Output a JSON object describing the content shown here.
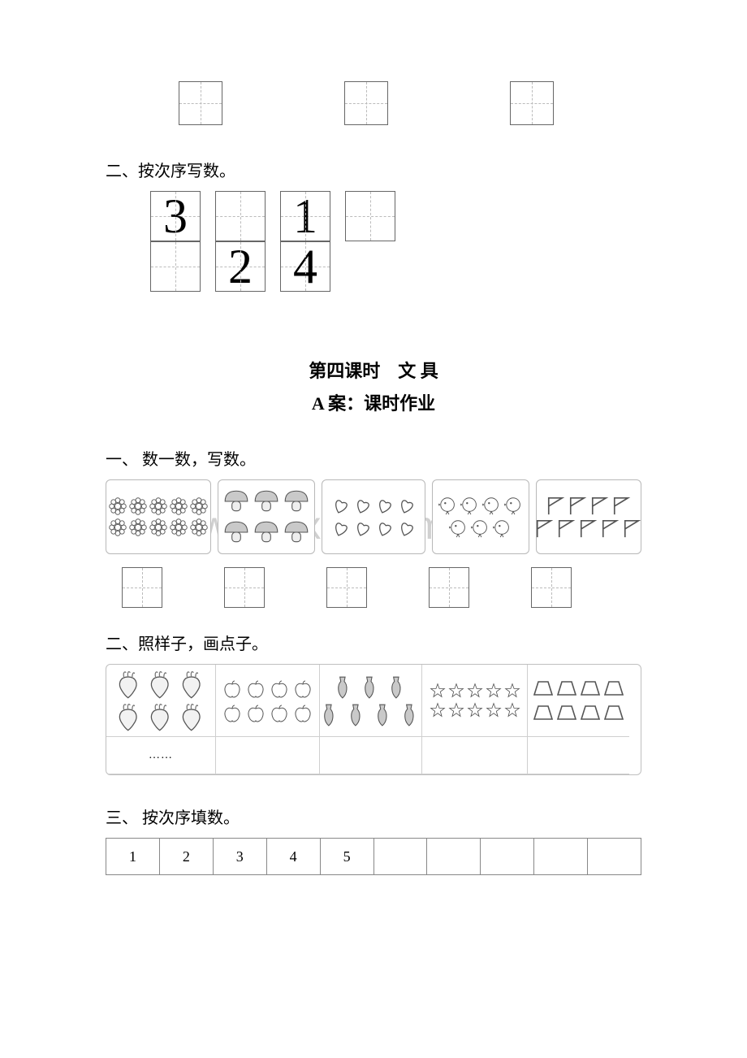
{
  "watermark": "www.zixin.com.cn",
  "section_top": {
    "heading": "二、按次序写数。",
    "grid": {
      "values": [
        [
          "3",
          "",
          "1",
          ""
        ],
        [
          "",
          "2",
          "4"
        ]
      ]
    }
  },
  "lesson": {
    "title": "第四课时　文 具",
    "subtitle": "A 案：课时作业"
  },
  "q1": {
    "heading": "一、 数一数，写数。",
    "cards": [
      {
        "type": "flower",
        "rows": [
          5,
          5
        ],
        "width": 130
      },
      {
        "type": "mushroom",
        "rows": [
          3,
          3
        ],
        "width": 120
      },
      {
        "type": "heart",
        "rows": [
          4,
          4
        ],
        "width": 128
      },
      {
        "type": "chick",
        "rows": [
          4,
          3
        ],
        "width": 120
      },
      {
        "type": "flag",
        "rows": [
          4,
          5
        ],
        "width": 130
      }
    ]
  },
  "q2": {
    "heading": "二、照样子，画点子。",
    "cells": [
      {
        "type": "radish",
        "rows": [
          3,
          3
        ]
      },
      {
        "type": "apple",
        "rows": [
          4,
          4
        ]
      },
      {
        "type": "vase",
        "rows": [
          3,
          4
        ]
      },
      {
        "type": "star",
        "rows": [
          5,
          5
        ]
      },
      {
        "type": "trapezoid",
        "rows": [
          4,
          4
        ]
      }
    ],
    "example_dots": "……"
  },
  "q3": {
    "heading": "三、 按次序填数。",
    "cells": [
      "1",
      "2",
      "3",
      "4",
      "5",
      "",
      "",
      "",
      "",
      ""
    ]
  },
  "colors": {
    "page_bg": "#ffffff",
    "text": "#000000",
    "border_gray": "#bfbfbf",
    "dash_gray": "#bbbbbb",
    "watermark": "rgba(170,170,170,0.55)"
  }
}
